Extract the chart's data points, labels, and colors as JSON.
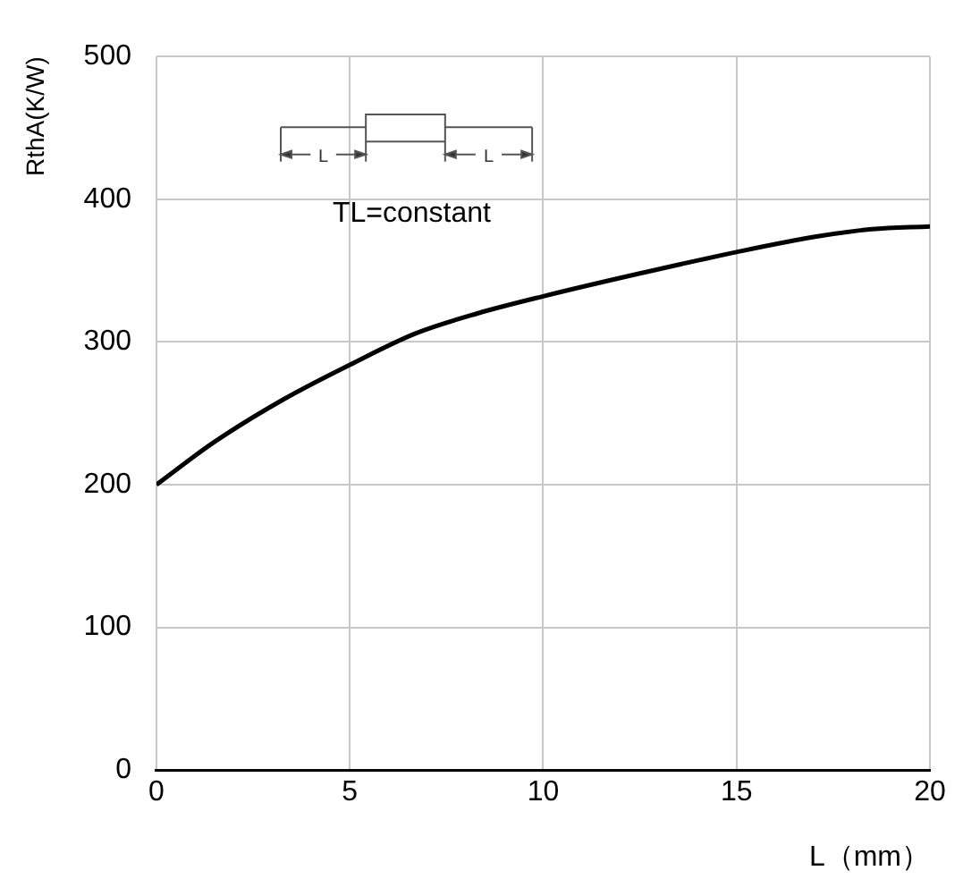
{
  "chart_data": {
    "type": "line",
    "xlabel": "L（mm）",
    "ylabel": "RthA(K/W)",
    "annotations": [
      "TL=constant",
      "L",
      "L"
    ],
    "x": [
      0,
      1.5,
      3.3,
      5,
      6.7,
      8.3,
      10,
      12.5,
      15,
      17.1,
      18.5,
      20
    ],
    "series": [
      {
        "color": "#000000",
        "values": [
          200,
          230,
          260,
          284,
          306,
          320,
          332,
          348,
          363,
          374,
          379,
          381
        ]
      }
    ],
    "xlim": [
      0,
      20
    ],
    "xticks": [
      0,
      5,
      10,
      15,
      20
    ],
    "ylim": [
      0,
      500
    ],
    "yticks": [
      0,
      100,
      200,
      300,
      400,
      500
    ],
    "grid": true,
    "legend": false,
    "marker": "none",
    "line_style": "solid"
  }
}
